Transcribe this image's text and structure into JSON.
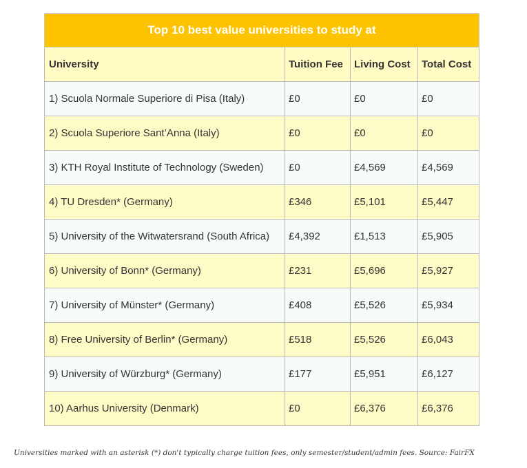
{
  "table": {
    "title": "Top 10 best value universities to study at",
    "headers": {
      "university": "University",
      "tuition_fee": "Tuition Fee",
      "living_cost": "Living Cost",
      "total_cost": "Total Cost"
    },
    "rows": [
      {
        "university": "1) Scuola Normale Superiore di Pisa (Italy)",
        "tuition_fee": "£0",
        "living_cost": "£0",
        "total_cost": "£0"
      },
      {
        "university": "2) Scuola Superiore Sant’Anna (Italy)",
        "tuition_fee": "£0",
        "living_cost": "£0",
        "total_cost": "£0"
      },
      {
        "university": "3) KTH Royal Institute of Technology (Sweden)",
        "tuition_fee": "£0",
        "living_cost": "£4,569",
        "total_cost": "£4,569"
      },
      {
        "university": "4) TU Dresden* (Germany)",
        "tuition_fee": "£346",
        "living_cost": "£5,101",
        "total_cost": "£5,447"
      },
      {
        "university": "5) University of the Witwatersrand (South Africa)",
        "tuition_fee": "£4,392",
        "living_cost": "£1,513",
        "total_cost": "£5,905"
      },
      {
        "university": "6) University of Bonn* (Germany)",
        "tuition_fee": "£231",
        "living_cost": "£5,696",
        "total_cost": "£5,927"
      },
      {
        "university": "7) University of Münster* (Germany)",
        "tuition_fee": "£408",
        "living_cost": "£5,526",
        "total_cost": "£5,934"
      },
      {
        "university": "8) Free University of Berlin* (Germany)",
        "tuition_fee": "£518",
        "living_cost": "£5,526",
        "total_cost": "£6,043"
      },
      {
        "university": "9) University of Würzburg* (Germany)",
        "tuition_fee": "£177",
        "living_cost": "£5,951",
        "total_cost": "£6,127"
      },
      {
        "university": "10) Aarhus University (Denmark)",
        "tuition_fee": "£0",
        "living_cost": "£6,376",
        "total_cost": "£6,376"
      }
    ]
  },
  "footnote": "Universities marked with an asterisk (*) don't typically charge tuition fees, only semester/student/admin fees. Source: FairFX",
  "colors": {
    "title_background": "#fec300",
    "title_text": "#ffffff",
    "header_background": "#fffbc2",
    "row_light": "#f7fcfb",
    "row_yellow": "#fffbc6",
    "border": "#b9b9b9"
  }
}
